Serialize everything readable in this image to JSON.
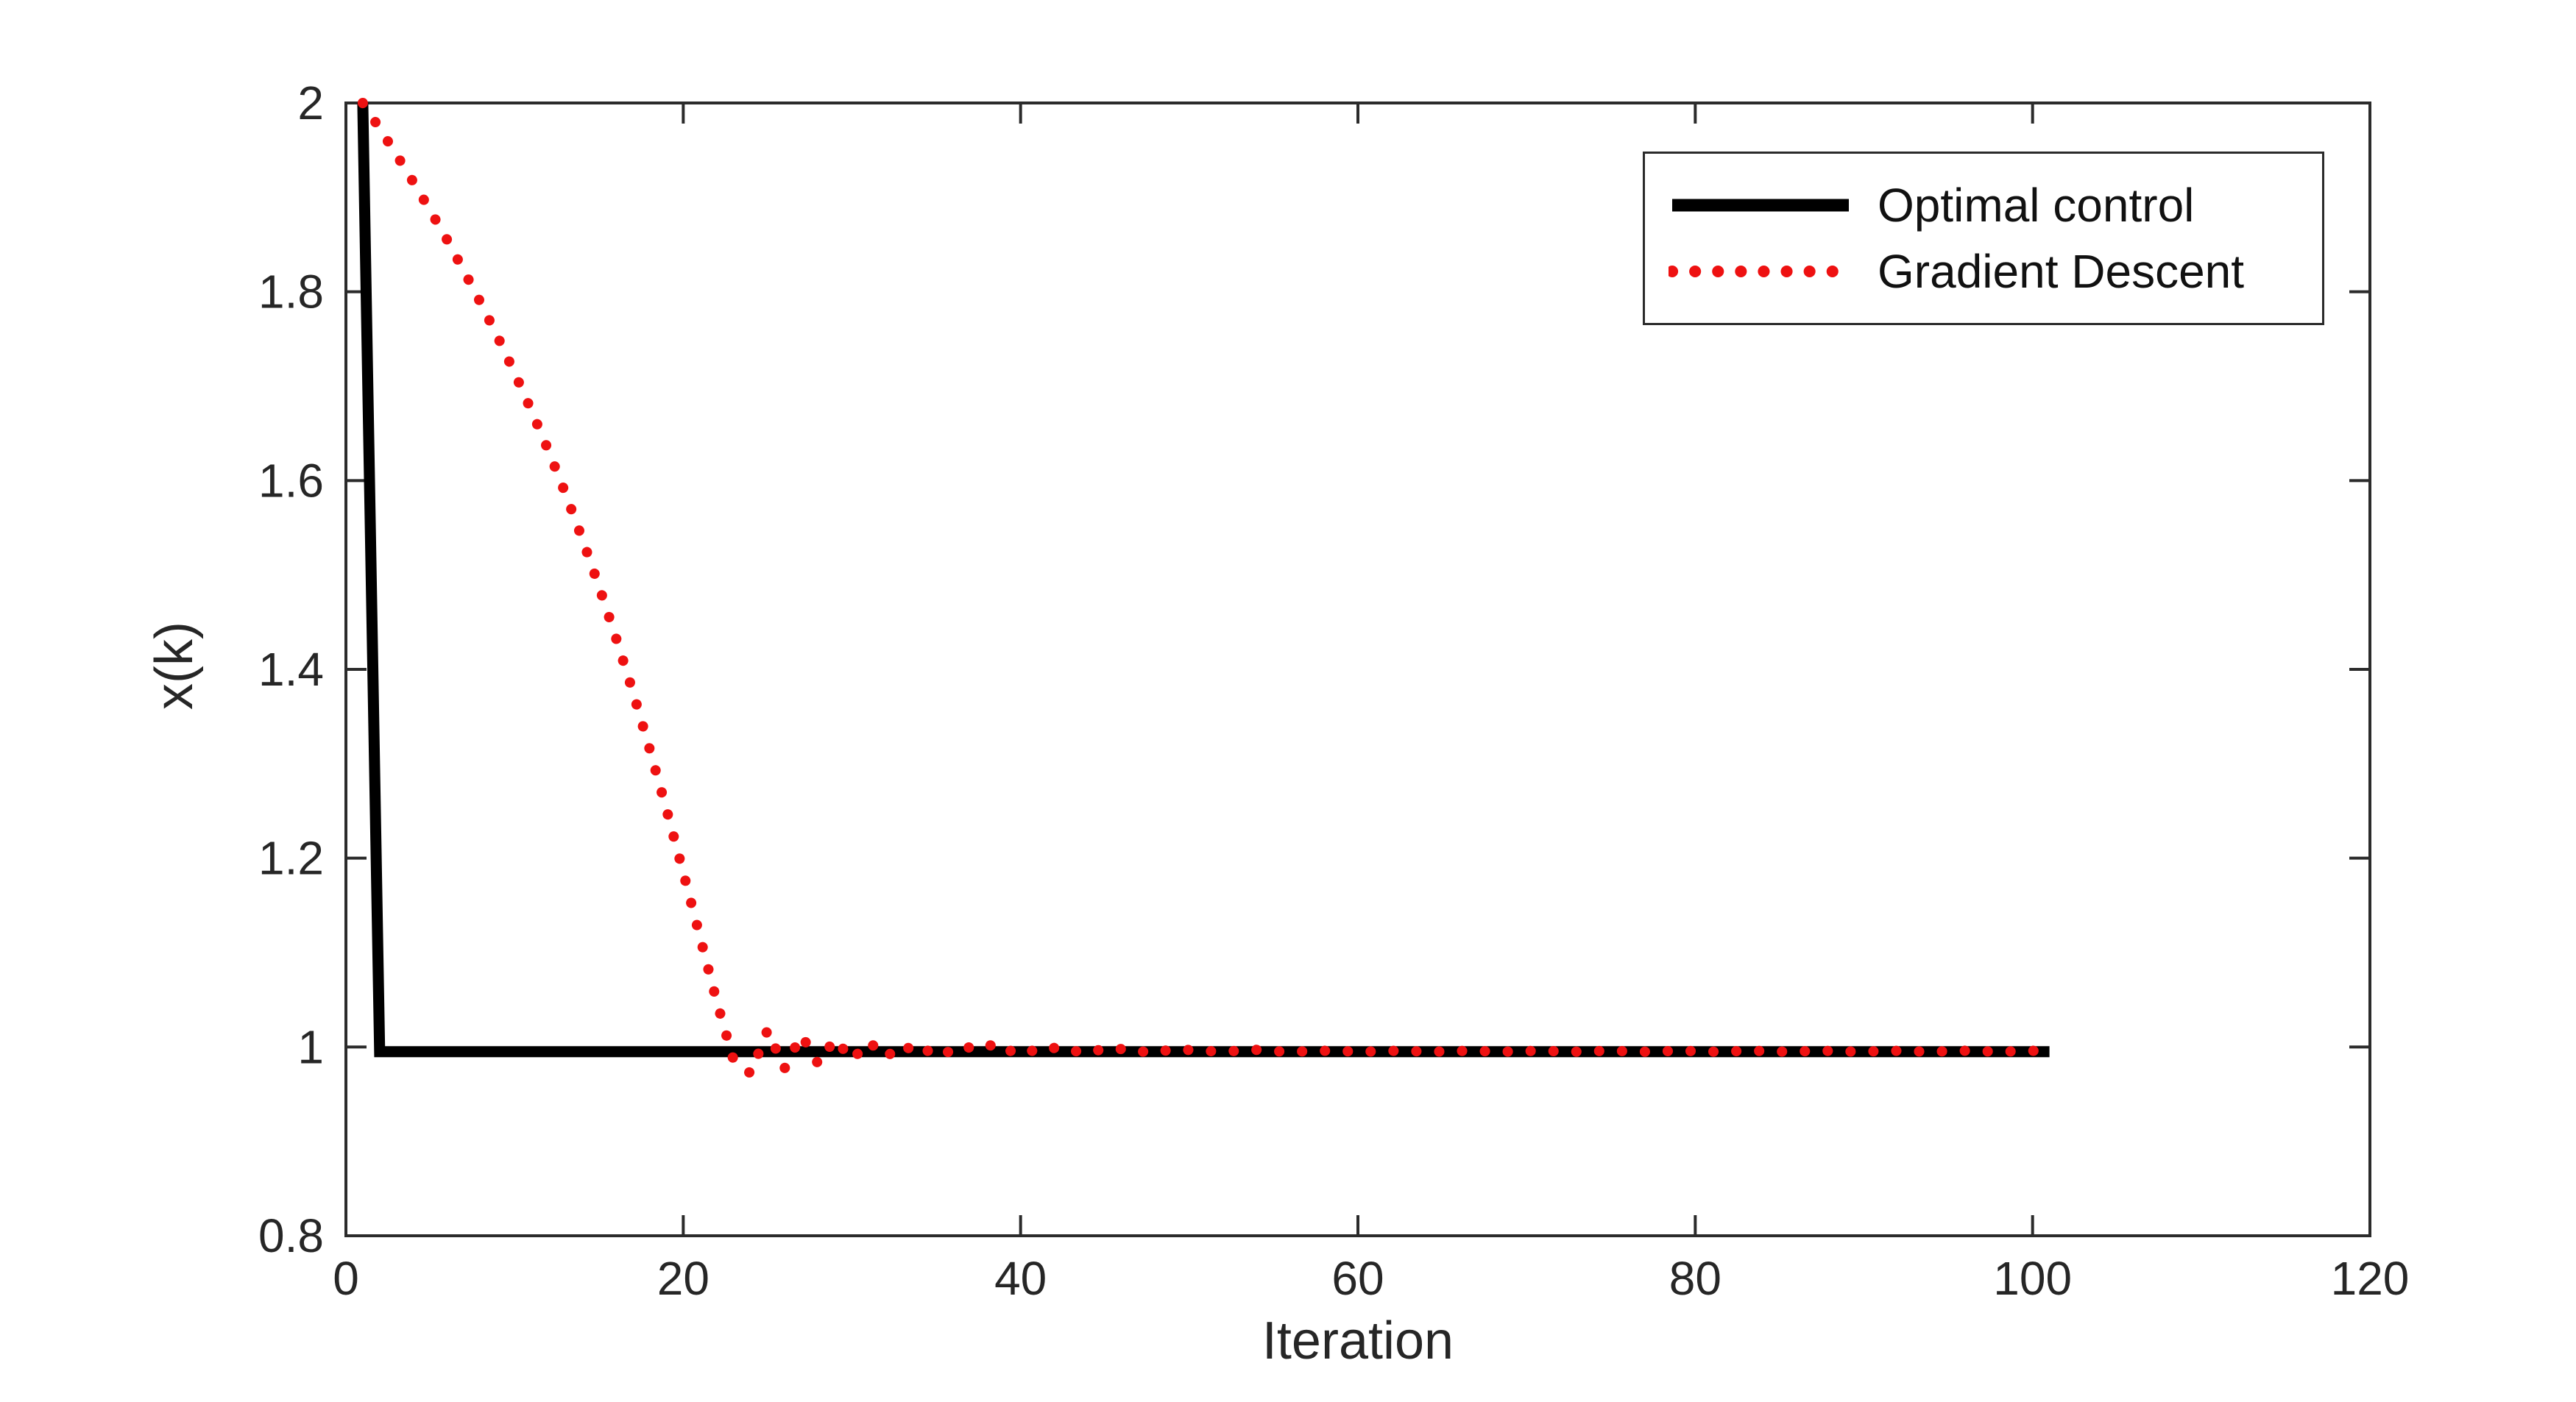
{
  "figure": {
    "background": "#ffffff"
  },
  "chart_data": {
    "type": "line",
    "title": "",
    "xlabel": "Iteration",
    "ylabel": "x(k)",
    "xlim": [
      0,
      120
    ],
    "ylim": [
      0.8,
      2
    ],
    "x_tick_values": [
      0,
      20,
      40,
      60,
      80,
      100,
      120
    ],
    "x_tick_labels": [
      "0",
      "20",
      "40",
      "60",
      "80",
      "100",
      "120"
    ],
    "y_tick_values": [
      0.8,
      1,
      1.2,
      1.4,
      1.6,
      1.8,
      2
    ],
    "y_tick_labels": [
      "0.8",
      "1",
      "1.2",
      "1.4",
      "1.6",
      "1.8",
      "2"
    ],
    "grid": false,
    "legend_position": "top-right",
    "axis_color": "#2b2b2b",
    "tick_text_color": "#262626",
    "series": [
      {
        "name": "Optimal control",
        "color": "#000000",
        "style": "solid",
        "line_width": 15,
        "x": [
          1,
          2,
          101
        ],
        "y": [
          2,
          0.995,
          0.995
        ]
      },
      {
        "name": "Gradient Descent",
        "color": "#ee1111",
        "style": "dotted",
        "line_width": 14,
        "x_start": 1,
        "x_step": 1,
        "y": [
          2.0,
          1.973,
          1.945,
          1.916,
          1.886,
          1.855,
          1.822,
          1.788,
          1.752,
          1.714,
          1.674,
          1.632,
          1.587,
          1.539,
          1.488,
          1.434,
          1.377,
          1.316,
          1.252,
          1.185,
          1.116,
          1.047,
          0.985,
          0.972,
          1.018,
          0.977,
          1.013,
          0.982,
          1.009,
          0.986,
          1.006,
          0.989,
          1.003,
          0.991,
          1.001,
          0.992,
          1.0,
          1.004,
          0.993,
          1.0,
          0.994,
          0.999,
          0.994,
          0.999,
          0.995,
          0.998,
          0.994,
          0.998,
          0.995,
          0.997,
          0.995,
          0.997,
          0.995,
          0.997,
          0.995,
          0.996,
          0.995,
          0.996,
          0.995,
          0.996,
          0.995,
          0.996,
          0.995,
          0.996,
          0.995,
          0.996,
          0.995,
          0.996,
          0.995,
          0.996,
          0.995,
          0.996,
          0.995,
          0.996,
          0.995,
          0.996,
          0.995,
          0.996,
          0.995,
          0.996,
          0.995,
          0.996,
          0.995,
          0.996,
          0.995,
          0.996,
          0.995,
          0.996,
          0.995,
          0.996,
          0.995,
          0.996,
          0.995,
          0.996,
          0.995,
          0.996,
          0.995,
          0.996,
          0.995,
          0.996,
          0.995
        ]
      }
    ]
  }
}
